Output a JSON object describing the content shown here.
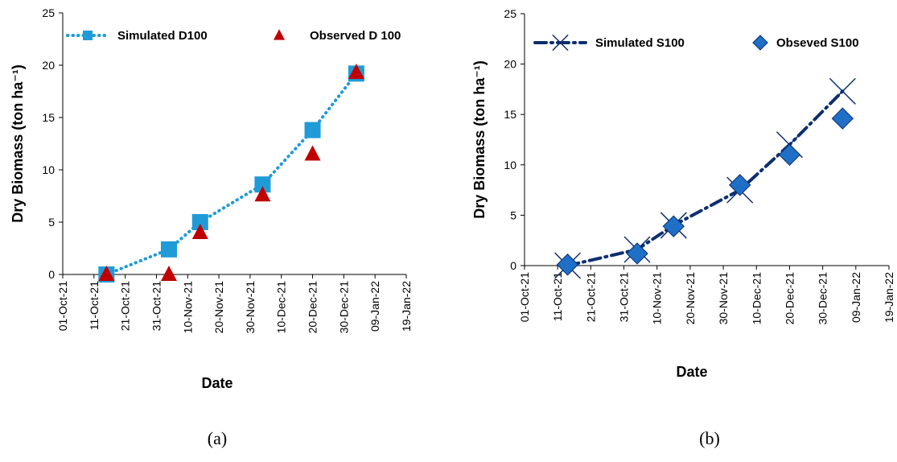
{
  "chart_data": [
    {
      "type": "line",
      "x_label": "Date",
      "y_label": "Dry Biomass (ton ha⁻¹)",
      "caption": "(a)",
      "x": [
        "15-Oct-21",
        "04-Nov-21",
        "14-Nov-21",
        "04-Dec-21",
        "20-Dec-21",
        "03-Jan-22"
      ],
      "xlim": [
        "01-Oct-21",
        "19-Jan-22"
      ],
      "xticks": [
        "01-Oct-21",
        "11-Oct-21",
        "21-Oct-21",
        "31-Oct-21",
        "10-Nov-21",
        "20-Nov-21",
        "30-Nov-21",
        "10-Dec-21",
        "20-Dec-21",
        "30-Dec-21",
        "09-Jan-22",
        "19-Jan-22"
      ],
      "ylim": [
        0,
        25
      ],
      "yticks": [
        0,
        5,
        10,
        15,
        20,
        25
      ],
      "legend": "top",
      "series": [
        {
          "name": "Simulated D100",
          "color": "#1f9bd7",
          "line": "dotted",
          "marker": "square",
          "values": [
            0,
            2.4,
            5.0,
            8.6,
            13.8,
            19.2
          ]
        },
        {
          "name": "Observed D 100",
          "color": "#c00000",
          "line": "none",
          "marker": "triangle",
          "values": [
            0,
            0,
            4.0,
            7.6,
            11.5,
            19.3
          ]
        }
      ]
    },
    {
      "type": "line",
      "x_label": "Date",
      "y_label": "Dry Biomass (ton ha⁻¹)",
      "caption": "(b)",
      "x": [
        "14-Oct-21",
        "04-Nov-21",
        "15-Nov-21",
        "05-Dec-21",
        "20-Dec-21",
        "05-Jan-22"
      ],
      "xlim": [
        "01-Oct-21",
        "19-Jan-22"
      ],
      "xticks": [
        "01-Oct-21",
        "11-Oct-21",
        "21-Oct-21",
        "31-Oct-21",
        "10-Nov-21",
        "20-Nov-21",
        "30-Nov-21",
        "10-Dec-21",
        "20-Dec-21",
        "30-Dec-21",
        "09-Jan-22",
        "19-Jan-22"
      ],
      "ylim": [
        0,
        25
      ],
      "yticks": [
        0,
        5,
        10,
        15,
        20,
        25
      ],
      "legend": "top",
      "series": [
        {
          "name": "Simulated S100",
          "color": "#0d2f6e",
          "line": "dashed",
          "marker": "x",
          "values": [
            0,
            1.6,
            4.0,
            7.5,
            12.0,
            17.3
          ]
        },
        {
          "name": "Obseved S100",
          "color": "#1f6fc6",
          "line": "none",
          "marker": "diamond",
          "values": [
            0.1,
            1.2,
            3.9,
            8.0,
            11.0,
            14.6
          ]
        }
      ]
    }
  ]
}
